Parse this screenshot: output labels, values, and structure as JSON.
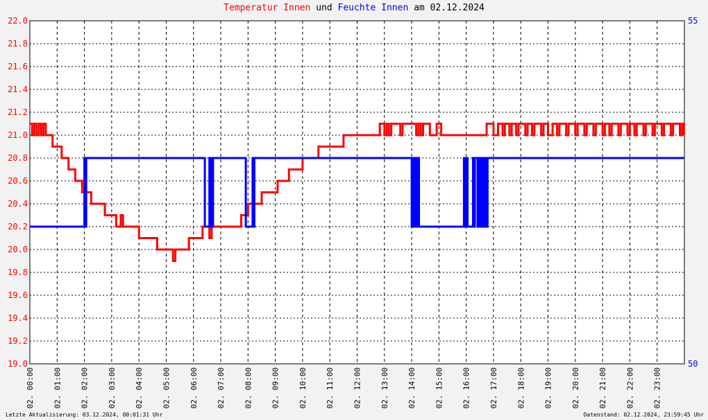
{
  "title": {
    "part1": "Temperatur",
    "part2": "Innen",
    "part3": "und",
    "part4": "Feuchte",
    "part5": "Innen",
    "part6": "am 02.12.2024"
  },
  "footer": {
    "left": "Letzte Aktualisierung: 03.12.2024, 00:01:31 Uhr",
    "right": "Datenstand: 02.12.2024, 23:59:45 Uhr"
  },
  "colors": {
    "temperature": "#ff0000",
    "humidity": "#0000ff",
    "background": "#f2f2f2",
    "plot_background": "#ffffff"
  },
  "chart_data": {
    "type": "line",
    "title": "Temperatur Innen und Feuchte Innen am 02.12.2024",
    "x_ticks": [
      "02. 00:00",
      "02. 01:00",
      "02. 02:00",
      "02. 03:00",
      "02. 04:00",
      "02. 05:00",
      "02. 06:00",
      "02. 07:00",
      "02. 08:00",
      "02. 09:00",
      "02. 10:00",
      "02. 11:00",
      "02. 12:00",
      "02. 13:00",
      "02. 14:00",
      "02. 15:00",
      "02. 16:00",
      "02. 17:00",
      "02. 18:00",
      "02. 19:00",
      "02. 20:00",
      "02. 21:00",
      "02. 22:00",
      "02. 23:00"
    ],
    "y_left": {
      "range": [
        19.0,
        22.0
      ],
      "ticks": [
        "19.0",
        "19.2",
        "19.4",
        "19.6",
        "19.8",
        "20.0",
        "20.2",
        "20.4",
        "20.6",
        "20.8",
        "21.0",
        "21.2",
        "21.4",
        "21.6",
        "21.8",
        "22.0"
      ]
    },
    "y_right": {
      "range": [
        50,
        55
      ],
      "ticks": [
        "50",
        "55"
      ]
    },
    "grid": true,
    "series": [
      {
        "name": "Temperatur Innen",
        "axis": "left",
        "points": [
          [
            "00:00",
            21.1
          ],
          [
            "00:05",
            21.0
          ],
          [
            "00:10",
            21.1
          ],
          [
            "00:15",
            21.0
          ],
          [
            "00:20",
            21.1
          ],
          [
            "00:25",
            21.0
          ],
          [
            "00:30",
            21.1
          ],
          [
            "00:35",
            21.0
          ],
          [
            "00:45",
            21.0
          ],
          [
            "00:50",
            20.9
          ],
          [
            "01:00",
            20.9
          ],
          [
            "01:10",
            20.8
          ],
          [
            "01:20",
            20.8
          ],
          [
            "01:25",
            20.7
          ],
          [
            "01:35",
            20.7
          ],
          [
            "01:40",
            20.6
          ],
          [
            "01:50",
            20.6
          ],
          [
            "01:55",
            20.5
          ],
          [
            "02:10",
            20.5
          ],
          [
            "02:15",
            20.4
          ],
          [
            "02:30",
            20.4
          ],
          [
            "02:40",
            20.4
          ],
          [
            "02:45",
            20.3
          ],
          [
            "02:55",
            20.3
          ],
          [
            "03:05",
            20.3
          ],
          [
            "03:10",
            20.2
          ],
          [
            "03:20",
            20.3
          ],
          [
            "03:25",
            20.2
          ],
          [
            "03:55",
            20.2
          ],
          [
            "04:00",
            20.1
          ],
          [
            "04:35",
            20.1
          ],
          [
            "04:40",
            20.0
          ],
          [
            "04:50",
            20.0
          ],
          [
            "05:00",
            20.0
          ],
          [
            "05:10",
            20.0
          ],
          [
            "05:15",
            19.9
          ],
          [
            "05:20",
            20.0
          ],
          [
            "05:45",
            20.0
          ],
          [
            "05:50",
            20.1
          ],
          [
            "06:15",
            20.1
          ],
          [
            "06:20",
            20.2
          ],
          [
            "06:30",
            20.2
          ],
          [
            "06:35",
            20.1
          ],
          [
            "06:40",
            20.2
          ],
          [
            "07:40",
            20.2
          ],
          [
            "07:45",
            20.3
          ],
          [
            "07:55",
            20.3
          ],
          [
            "08:00",
            20.4
          ],
          [
            "08:10",
            20.4
          ],
          [
            "08:25",
            20.4
          ],
          [
            "08:30",
            20.5
          ],
          [
            "08:45",
            20.5
          ],
          [
            "09:00",
            20.5
          ],
          [
            "09:05",
            20.6
          ],
          [
            "09:25",
            20.6
          ],
          [
            "09:30",
            20.7
          ],
          [
            "09:55",
            20.7
          ],
          [
            "10:00",
            20.8
          ],
          [
            "10:20",
            20.8
          ],
          [
            "10:30",
            20.8
          ],
          [
            "10:35",
            20.9
          ],
          [
            "11:25",
            20.9
          ],
          [
            "11:30",
            21.0
          ],
          [
            "12:45",
            21.0
          ],
          [
            "12:50",
            21.1
          ],
          [
            "13:00",
            21.0
          ],
          [
            "13:05",
            21.1
          ],
          [
            "13:10",
            21.0
          ],
          [
            "13:15",
            21.1
          ],
          [
            "13:30",
            21.1
          ],
          [
            "13:35",
            21.0
          ],
          [
            "13:40",
            21.1
          ],
          [
            "14:05",
            21.1
          ],
          [
            "14:10",
            21.0
          ],
          [
            "14:15",
            21.1
          ],
          [
            "14:20",
            21.0
          ],
          [
            "14:25",
            21.1
          ],
          [
            "14:35",
            21.1
          ],
          [
            "14:40",
            21.0
          ],
          [
            "14:50",
            21.0
          ],
          [
            "14:55",
            21.1
          ],
          [
            "15:05",
            21.0
          ],
          [
            "16:40",
            21.0
          ],
          [
            "16:45",
            21.1
          ],
          [
            "16:55",
            21.1
          ],
          [
            "17:00",
            21.0
          ],
          [
            "17:10",
            21.1
          ],
          [
            "17:20",
            21.0
          ],
          [
            "17:25",
            21.1
          ],
          [
            "17:35",
            21.0
          ],
          [
            "17:40",
            21.1
          ],
          [
            "17:50",
            21.0
          ],
          [
            "17:55",
            21.1
          ],
          [
            "18:10",
            21.0
          ],
          [
            "18:15",
            21.1
          ],
          [
            "18:25",
            21.0
          ],
          [
            "18:30",
            21.1
          ],
          [
            "18:45",
            21.0
          ],
          [
            "18:50",
            21.1
          ],
          [
            "19:00",
            21.0
          ],
          [
            "19:10",
            21.1
          ],
          [
            "19:20",
            21.0
          ],
          [
            "19:25",
            21.1
          ],
          [
            "19:40",
            21.0
          ],
          [
            "19:45",
            21.1
          ],
          [
            "20:00",
            21.0
          ],
          [
            "20:05",
            21.1
          ],
          [
            "20:20",
            21.0
          ],
          [
            "20:25",
            21.1
          ],
          [
            "20:40",
            21.0
          ],
          [
            "20:45",
            21.1
          ],
          [
            "21:00",
            21.0
          ],
          [
            "21:05",
            21.1
          ],
          [
            "21:15",
            21.0
          ],
          [
            "21:20",
            21.1
          ],
          [
            "21:35",
            21.0
          ],
          [
            "21:40",
            21.1
          ],
          [
            "21:55",
            21.0
          ],
          [
            "22:00",
            21.1
          ],
          [
            "22:10",
            21.0
          ],
          [
            "22:15",
            21.1
          ],
          [
            "22:30",
            21.0
          ],
          [
            "22:35",
            21.1
          ],
          [
            "22:50",
            21.0
          ],
          [
            "22:55",
            21.1
          ],
          [
            "23:10",
            21.0
          ],
          [
            "23:15",
            21.1
          ],
          [
            "23:30",
            21.0
          ],
          [
            "23:35",
            21.1
          ],
          [
            "23:50",
            21.0
          ],
          [
            "23:55",
            21.1
          ],
          [
            "23:59",
            21.0
          ]
        ]
      },
      {
        "name": "Feuchte Innen",
        "axis": "right",
        "points": [
          [
            "00:00",
            52.0
          ],
          [
            "02:00",
            52.0
          ],
          [
            "02:00",
            53.0
          ],
          [
            "02:02",
            52.0
          ],
          [
            "02:04",
            53.0
          ],
          [
            "06:25",
            53.0
          ],
          [
            "06:25",
            52.0
          ],
          [
            "06:35",
            52.0
          ],
          [
            "06:35",
            53.0
          ],
          [
            "06:37",
            52.0
          ],
          [
            "06:39",
            53.0
          ],
          [
            "06:41",
            52.0
          ],
          [
            "06:43",
            53.0
          ],
          [
            "07:55",
            53.0
          ],
          [
            "07:55",
            52.0
          ],
          [
            "08:10",
            52.0
          ],
          [
            "08:10",
            53.0
          ],
          [
            "08:12",
            52.0
          ],
          [
            "08:14",
            53.0
          ],
          [
            "14:00",
            53.0
          ],
          [
            "14:00",
            52.0
          ],
          [
            "14:02",
            53.0
          ],
          [
            "14:04",
            52.0
          ],
          [
            "14:06",
            53.0
          ],
          [
            "14:08",
            52.0
          ],
          [
            "14:10",
            53.0
          ],
          [
            "14:12",
            52.0
          ],
          [
            "14:14",
            53.0
          ],
          [
            "14:16",
            52.0
          ],
          [
            "15:55",
            52.0
          ],
          [
            "15:55",
            53.0
          ],
          [
            "15:58",
            52.0
          ],
          [
            "16:00",
            53.0
          ],
          [
            "16:03",
            52.0
          ],
          [
            "16:10",
            52.0
          ],
          [
            "16:15",
            52.0
          ],
          [
            "16:15",
            53.0
          ],
          [
            "16:17",
            52.0
          ],
          [
            "16:19",
            53.0
          ],
          [
            "16:25",
            53.0
          ],
          [
            "16:25",
            52.0
          ],
          [
            "16:27",
            53.0
          ],
          [
            "16:29",
            52.0
          ],
          [
            "16:31",
            53.0
          ],
          [
            "16:33",
            52.0
          ],
          [
            "16:35",
            53.0
          ],
          [
            "16:37",
            52.0
          ],
          [
            "16:39",
            53.0
          ],
          [
            "16:41",
            52.0
          ],
          [
            "16:43",
            53.0
          ],
          [
            "16:45",
            52.0
          ],
          [
            "16:47",
            53.0
          ],
          [
            "23:59",
            53.0
          ]
        ]
      }
    ]
  }
}
